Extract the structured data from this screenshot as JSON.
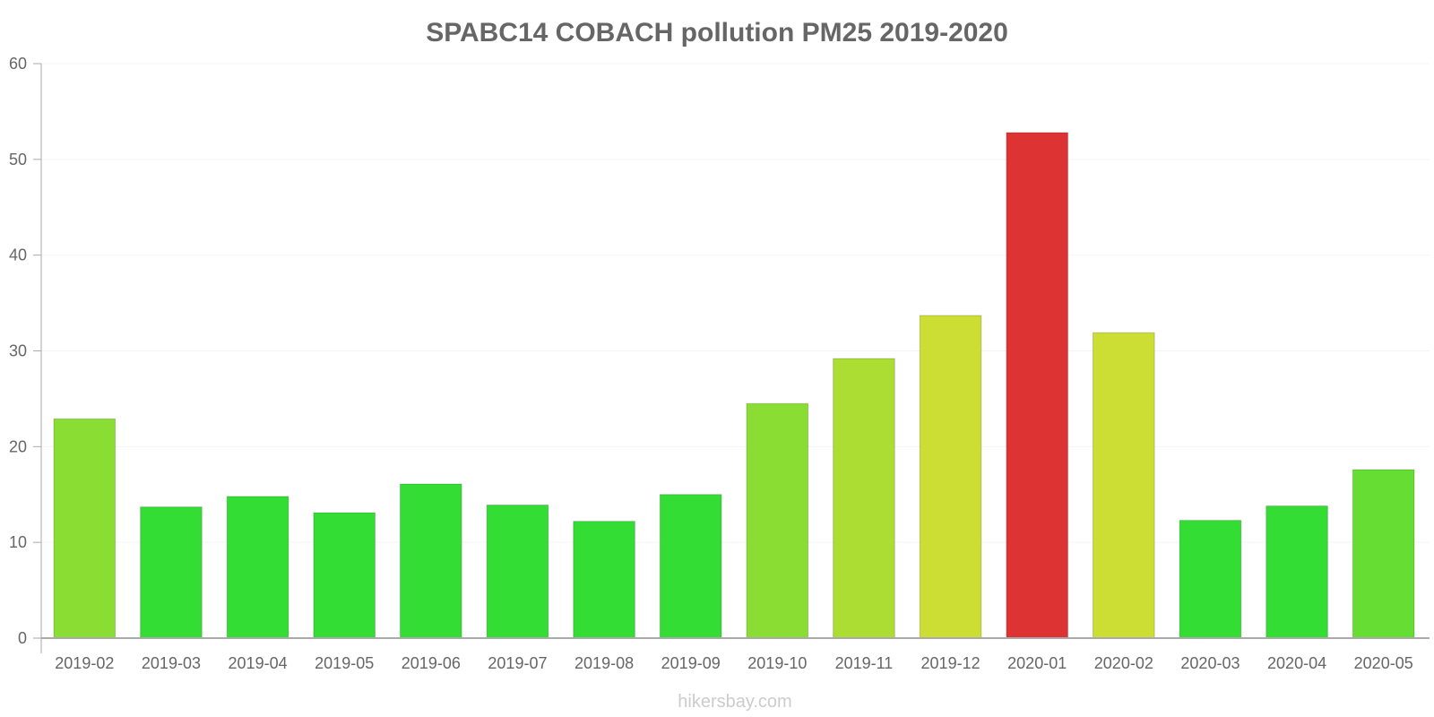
{
  "chart_data": {
    "type": "bar",
    "title": "SPABC14 COBACH pollution PM25 2019-2020",
    "xlabel": "",
    "ylabel": "",
    "ylim": [
      0,
      60
    ],
    "y_ticks": [
      0,
      10,
      20,
      30,
      40,
      50,
      60
    ],
    "grid": true,
    "categories": [
      "2019-02",
      "2019-03",
      "2019-04",
      "2019-05",
      "2019-06",
      "2019-07",
      "2019-08",
      "2019-09",
      "2019-10",
      "2019-11",
      "2019-12",
      "2020-01",
      "2020-02",
      "2020-03",
      "2020-04",
      "2020-05"
    ],
    "values": [
      22.9,
      13.7,
      14.8,
      13.1,
      16.1,
      13.9,
      12.2,
      15.0,
      24.5,
      29.2,
      33.7,
      52.8,
      31.9,
      12.3,
      13.8,
      17.6
    ],
    "bar_colors": [
      "#8ade33",
      "#33dd33",
      "#33dd33",
      "#33dd33",
      "#33dd33",
      "#33dd33",
      "#33dd33",
      "#33dd33",
      "#8ade33",
      "#abdd33",
      "#ccdd33",
      "#dd3333",
      "#ccdd33",
      "#33dd33",
      "#33dd33",
      "#66dd33"
    ]
  },
  "watermark": "hikersbay.com",
  "colors": {
    "title": "#666666",
    "axis": "#aaaaaa",
    "grid": "#f4f4f4",
    "tick_text": "#666666",
    "watermark": "#cccccc"
  }
}
